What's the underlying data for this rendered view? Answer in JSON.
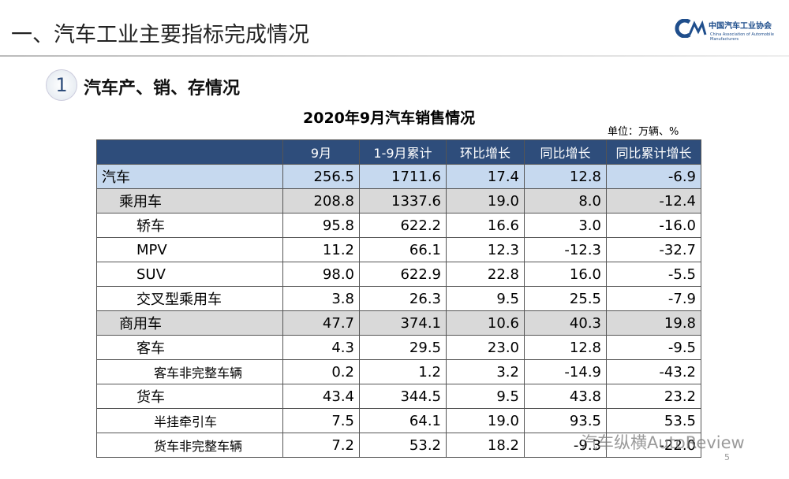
{
  "header": {
    "title": "一、汽车工业主要指标完成情况",
    "logo": "中国汽车工业协会",
    "logo_en": "China Association of Automobile Manufacturers"
  },
  "section": {
    "number": "1",
    "title": "汽车产、销、存情况"
  },
  "table": {
    "title": "2020年9月汽车销售情况",
    "unit": "单位：万辆、%",
    "columns": [
      "",
      "9月",
      "1-9月累计",
      "环比增长",
      "同比增长",
      "同比累计增长"
    ],
    "rows": [
      [
        "汽车",
        "256.5",
        "1711.6",
        "17.4",
        "12.8",
        "-6.9"
      ],
      [
        "乘用车",
        "208.8",
        "1337.6",
        "19.0",
        "8.0",
        "-12.4"
      ],
      [
        "轿车",
        "95.8",
        "622.2",
        "16.6",
        "3.0",
        "-16.0"
      ],
      [
        "MPV",
        "11.2",
        "66.1",
        "12.3",
        "-12.3",
        "-32.7"
      ],
      [
        "SUV",
        "98.0",
        "622.9",
        "22.8",
        "16.0",
        "-5.5"
      ],
      [
        "交叉型乘用车",
        "3.8",
        "26.3",
        "9.5",
        "25.5",
        "-7.9"
      ],
      [
        "商用车",
        "47.7",
        "374.1",
        "10.6",
        "40.3",
        "19.8"
      ],
      [
        "客车",
        "4.3",
        "29.5",
        "23.0",
        "12.8",
        "-9.5"
      ],
      [
        "客车非完整车辆",
        "0.2",
        "1.2",
        "3.2",
        "-14.9",
        "-43.2"
      ],
      [
        "货车",
        "43.4",
        "344.5",
        "9.5",
        "43.8",
        "23.2"
      ],
      [
        "半挂牵引车",
        "7.5",
        "64.1",
        "19.0",
        "93.5",
        "53.5"
      ],
      [
        "货车非完整车辆",
        "7.2",
        "53.2",
        "18.2",
        "-9.3",
        "-22.0"
      ]
    ]
  },
  "watermark": "汽车纵横AutoReview",
  "page_number": "5"
}
